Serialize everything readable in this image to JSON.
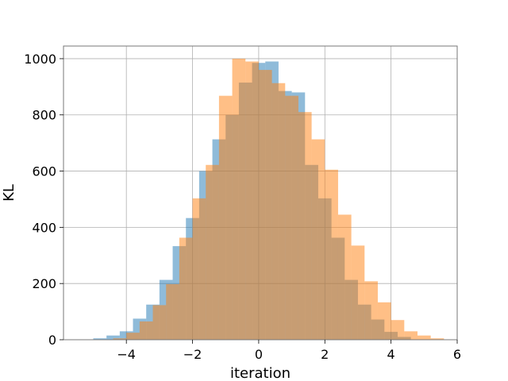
{
  "chart_data": {
    "type": "histogram",
    "title": "",
    "xlabel": "iteration",
    "ylabel": "KL",
    "xlim": [
      -5.9,
      6.0
    ],
    "ylim": [
      0,
      1045
    ],
    "xticks": [
      -4,
      -2,
      0,
      2,
      4,
      6
    ],
    "yticks": [
      0,
      200,
      400,
      600,
      800,
      1000
    ],
    "grid": true,
    "legend": "none",
    "series": [
      {
        "color": "#1f77b4",
        "alpha": 0.5,
        "bins": [
          {
            "x0": -5.0,
            "x1": -4.6,
            "y": 5
          },
          {
            "x0": -4.6,
            "x1": -4.2,
            "y": 15
          },
          {
            "x0": -4.2,
            "x1": -3.8,
            "y": 30
          },
          {
            "x0": -3.8,
            "x1": -3.4,
            "y": 75
          },
          {
            "x0": -3.4,
            "x1": -3.0,
            "y": 125
          },
          {
            "x0": -3.0,
            "x1": -2.6,
            "y": 213
          },
          {
            "x0": -2.6,
            "x1": -2.2,
            "y": 333
          },
          {
            "x0": -2.2,
            "x1": -1.8,
            "y": 433
          },
          {
            "x0": -1.8,
            "x1": -1.4,
            "y": 600
          },
          {
            "x0": -1.4,
            "x1": -1.0,
            "y": 713
          },
          {
            "x0": -1.0,
            "x1": -0.6,
            "y": 800
          },
          {
            "x0": -0.6,
            "x1": -0.2,
            "y": 915
          },
          {
            "x0": -0.2,
            "x1": 0.2,
            "y": 985
          },
          {
            "x0": 0.2,
            "x1": 0.6,
            "y": 990
          },
          {
            "x0": 0.6,
            "x1": 1.0,
            "y": 885
          },
          {
            "x0": 1.0,
            "x1": 1.4,
            "y": 880
          },
          {
            "x0": 1.4,
            "x1": 1.8,
            "y": 622
          },
          {
            "x0": 1.8,
            "x1": 2.2,
            "y": 503
          },
          {
            "x0": 2.2,
            "x1": 2.6,
            "y": 363
          },
          {
            "x0": 2.6,
            "x1": 3.0,
            "y": 213
          },
          {
            "x0": 3.0,
            "x1": 3.4,
            "y": 125
          },
          {
            "x0": 3.4,
            "x1": 3.8,
            "y": 72
          },
          {
            "x0": 3.8,
            "x1": 4.2,
            "y": 28
          },
          {
            "x0": 4.2,
            "x1": 4.6,
            "y": 10
          }
        ]
      },
      {
        "color": "#ff7f0e",
        "alpha": 0.5,
        "bins": [
          {
            "x0": -4.4,
            "x1": -4.0,
            "y": 5
          },
          {
            "x0": -4.0,
            "x1": -3.6,
            "y": 25
          },
          {
            "x0": -3.6,
            "x1": -3.2,
            "y": 65
          },
          {
            "x0": -3.2,
            "x1": -2.8,
            "y": 123
          },
          {
            "x0": -2.8,
            "x1": -2.4,
            "y": 198
          },
          {
            "x0": -2.4,
            "x1": -2.0,
            "y": 363
          },
          {
            "x0": -2.0,
            "x1": -1.6,
            "y": 503
          },
          {
            "x0": -1.6,
            "x1": -1.2,
            "y": 622
          },
          {
            "x0": -1.2,
            "x1": -0.8,
            "y": 868
          },
          {
            "x0": -0.8,
            "x1": -0.4,
            "y": 1000
          },
          {
            "x0": -0.4,
            "x1": 0.0,
            "y": 990
          },
          {
            "x0": 0.0,
            "x1": 0.4,
            "y": 960
          },
          {
            "x0": 0.4,
            "x1": 0.8,
            "y": 913
          },
          {
            "x0": 0.8,
            "x1": 1.2,
            "y": 868
          },
          {
            "x0": 1.2,
            "x1": 1.6,
            "y": 810
          },
          {
            "x0": 1.6,
            "x1": 2.0,
            "y": 713
          },
          {
            "x0": 2.0,
            "x1": 2.4,
            "y": 605
          },
          {
            "x0": 2.4,
            "x1": 2.8,
            "y": 445
          },
          {
            "x0": 2.8,
            "x1": 3.2,
            "y": 335
          },
          {
            "x0": 3.2,
            "x1": 3.6,
            "y": 208
          },
          {
            "x0": 3.6,
            "x1": 4.0,
            "y": 133
          },
          {
            "x0": 4.0,
            "x1": 4.4,
            "y": 70
          },
          {
            "x0": 4.4,
            "x1": 4.8,
            "y": 30
          },
          {
            "x0": 4.8,
            "x1": 5.2,
            "y": 15
          },
          {
            "x0": 5.2,
            "x1": 5.6,
            "y": 5
          }
        ]
      }
    ]
  }
}
